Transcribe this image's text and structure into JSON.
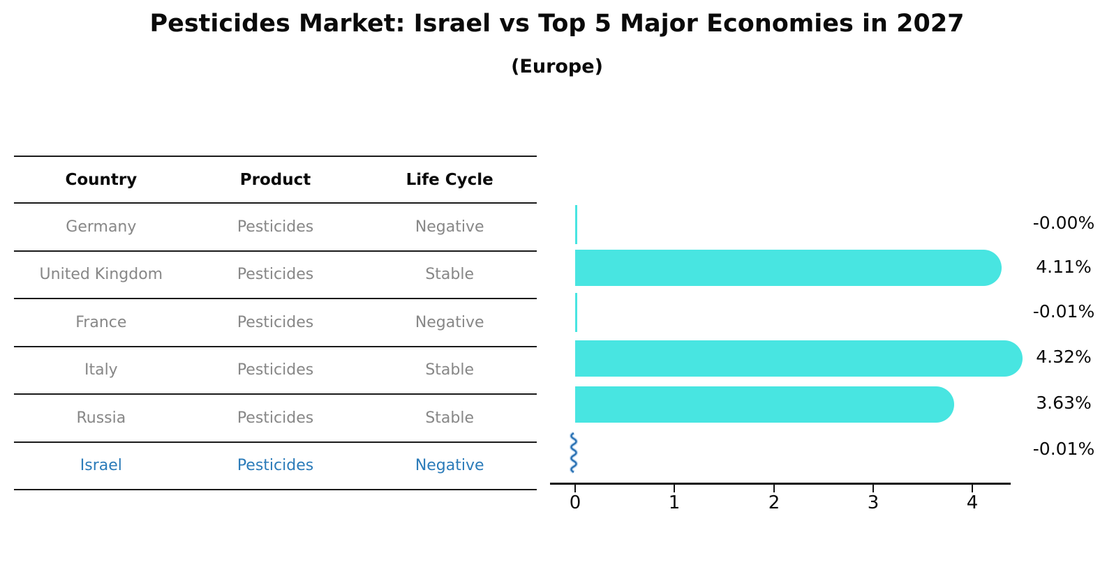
{
  "title": "Pesticides Market: Israel vs Top 5 Major Economies in 2027",
  "subtitle": "(Europe)",
  "table": {
    "headers": [
      "Country",
      "Product",
      "Life Cycle"
    ],
    "rows": [
      {
        "country": "Germany",
        "product": "Pesticides",
        "life_cycle": "Negative"
      },
      {
        "country": "United Kingdom",
        "product": "Pesticides",
        "life_cycle": "Stable"
      },
      {
        "country": "France",
        "product": "Pesticides",
        "life_cycle": "Negative"
      },
      {
        "country": "Italy",
        "product": "Pesticides",
        "life_cycle": "Stable"
      },
      {
        "country": "Russia",
        "product": "Pesticides",
        "life_cycle": "Stable"
      },
      {
        "country": "Israel",
        "product": "Pesticides",
        "life_cycle": "Negative"
      }
    ],
    "highlighted_row": "Israel"
  },
  "chart_data": {
    "type": "bar",
    "orientation": "horizontal",
    "title": "Pesticides Market: Israel vs Top 5 Major Economies in 2027",
    "subtitle": "(Europe)",
    "categories": [
      "Germany",
      "United Kingdom",
      "France",
      "Italy",
      "Russia",
      "Israel"
    ],
    "values": [
      -0.0,
      4.11,
      -0.01,
      4.32,
      3.63,
      -0.01
    ],
    "display_values": [
      "-0.00%",
      "4.11%",
      "-0.01%",
      "4.32%",
      "3.63%",
      "-0.01%"
    ],
    "x_ticks": [
      0,
      1,
      2,
      3,
      4
    ],
    "x_tick_labels": [
      "0",
      "1",
      "2",
      "3",
      "4"
    ],
    "xlim": [
      0,
      4.63
    ],
    "unit": "percent",
    "grid": false,
    "legend": "none",
    "bar_color": "#48e5e1",
    "highlight_color": "#2b7bb9",
    "axis_color": "#111111",
    "text_gray": "#878787"
  }
}
